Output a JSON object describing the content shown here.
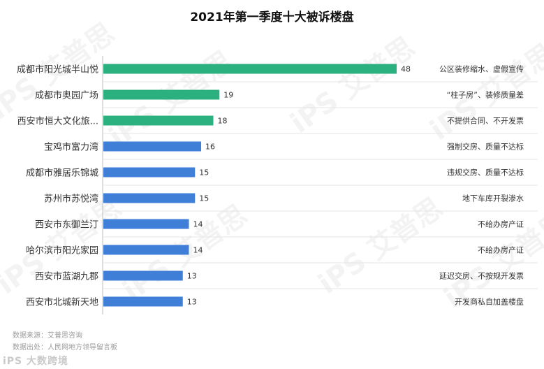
{
  "chart_data": {
    "type": "bar",
    "orientation": "horizontal",
    "title": "2021年第一季度十大被诉楼盘",
    "categories": [
      "成都市阳光城半山悦",
      "成都市奥园广场",
      "西安市恒大文化旅...",
      "宝鸡市富力湾",
      "成都市雅居乐锦城",
      "苏州市苏悦湾",
      "西安市东御兰汀",
      "哈尔滨市阳光家园",
      "西安市蓝湖九郡",
      "西安市北城新天地"
    ],
    "values": [
      48,
      19,
      18,
      16,
      15,
      15,
      14,
      14,
      13,
      13
    ],
    "annotations": [
      "公区装修缩水、虚假宣传",
      "“柱子房”、装修质量差",
      "不提供合同、不开发票",
      "强制交房、质量不达标",
      "违规交房、质量不达标",
      "地下车库开裂渗水",
      "不给办房产证",
      "不给办房产证",
      "延迟交房、不按规开发票",
      "开发商私自加盖楼盘"
    ],
    "colors": [
      "#2bb07f",
      "#2bb07f",
      "#2bb07f",
      "#3f7fd8",
      "#3f7fd8",
      "#3f7fd8",
      "#3f7fd8",
      "#3f7fd8",
      "#3f7fd8",
      "#3f7fd8"
    ],
    "xlim": [
      0,
      48
    ],
    "grid": false,
    "legend": "none"
  },
  "footer": {
    "source": "数据来源：艾普思咨询",
    "origin": "数据出处：人民网地方领导留言板"
  },
  "watermarks": {
    "bottom_logo": "iPS 大数跨境",
    "pattern": "iPS 艾普思"
  }
}
